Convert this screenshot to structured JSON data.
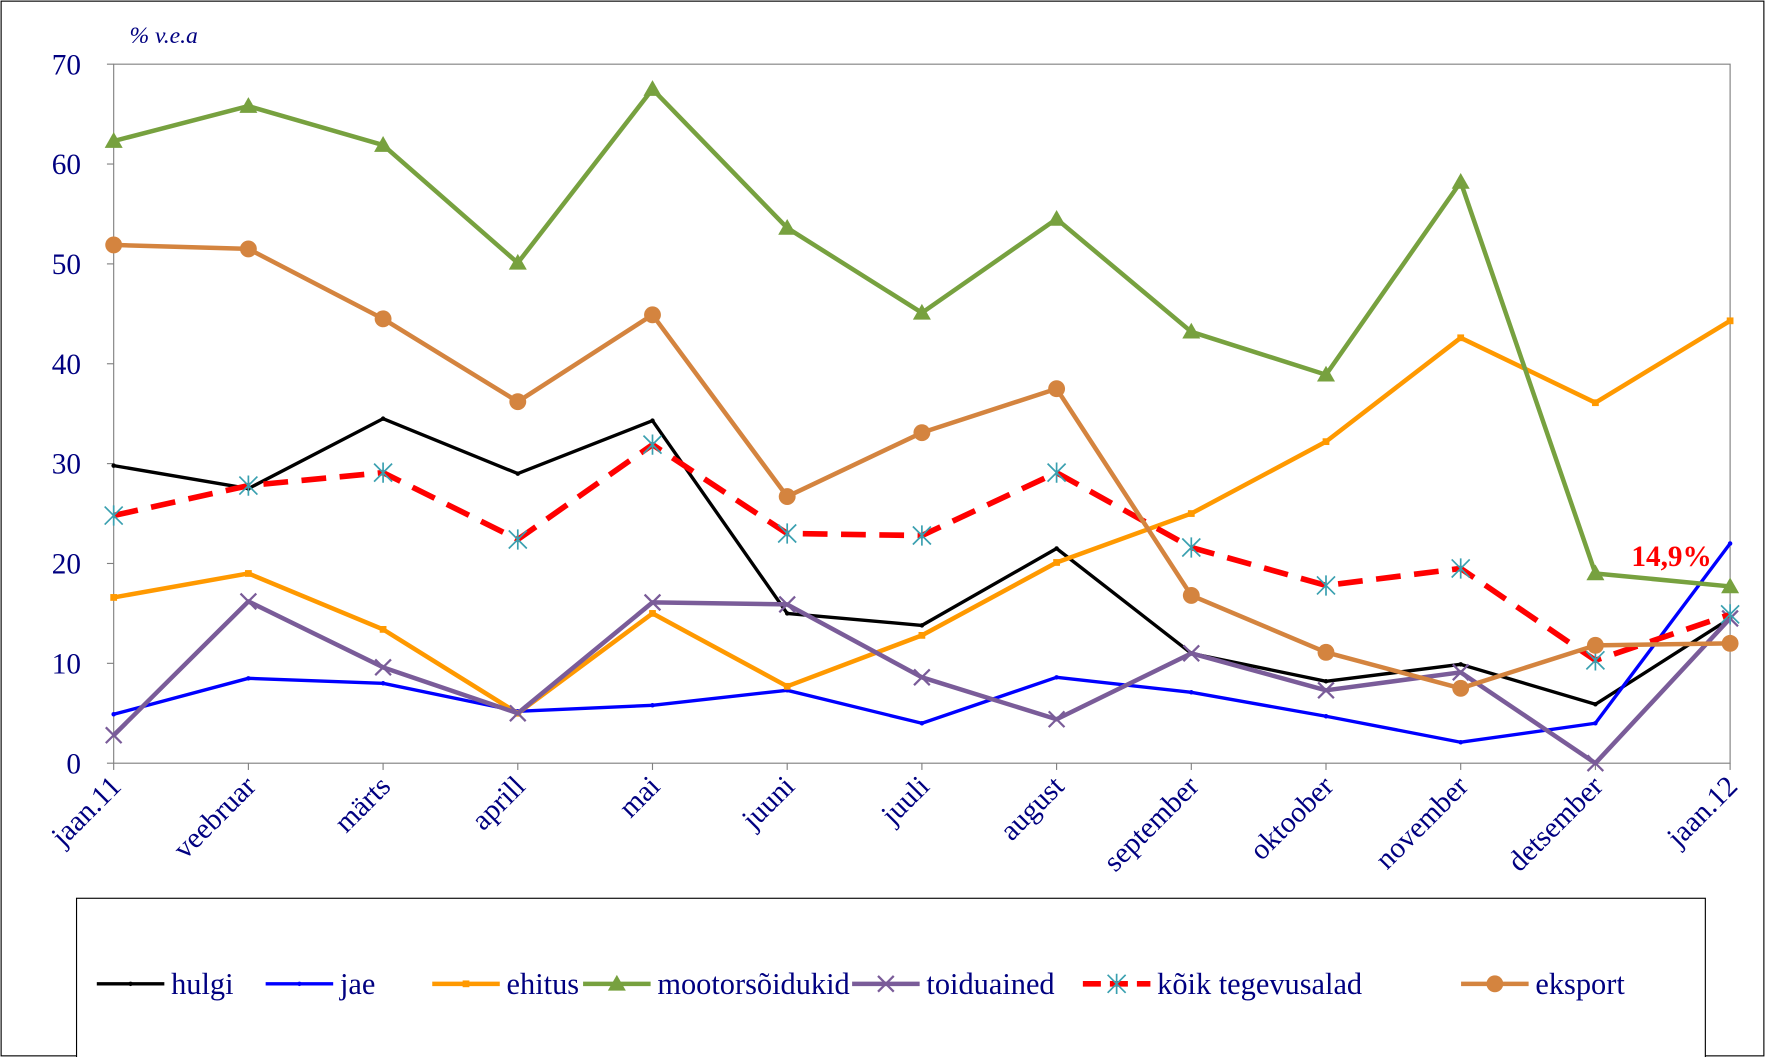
{
  "chart_data": {
    "type": "line",
    "unit_label": "% v.e.a",
    "annotation": "14,9%",
    "categories": [
      "jaan.11",
      "veebruar",
      "märts",
      "aprill",
      "mai",
      "juuni",
      "juuli",
      "august",
      "september",
      "oktoober",
      "november",
      "detsember",
      "jaan.12"
    ],
    "ylim": [
      0,
      70
    ],
    "yticks": [
      0,
      10,
      20,
      30,
      40,
      50,
      60,
      70
    ],
    "legend": "bottom",
    "series": [
      {
        "name": "hulgi",
        "color": "#000000",
        "marker": "dot",
        "values": [
          29.8,
          27.5,
          34.5,
          29,
          34.3,
          15,
          13.8,
          21.5,
          11,
          8.2,
          9.9,
          5.9,
          14.5
        ]
      },
      {
        "name": "jae",
        "color": "#0000ff",
        "marker": "dot",
        "values": [
          4.9,
          8.5,
          8,
          5.2,
          5.8,
          7.3,
          4,
          8.6,
          7.1,
          4.7,
          2.1,
          4,
          22
        ]
      },
      {
        "name": "ehitus",
        "color": "#ff9900",
        "marker": "square",
        "values": [
          16.6,
          19,
          13.4,
          5,
          15,
          7.7,
          12.8,
          20.1,
          25,
          32.2,
          42.6,
          36.1,
          44.3
        ]
      },
      {
        "name": "mootorsõidukid",
        "color": "#77a13f",
        "marker": "triangle",
        "values": [
          62.3,
          65.8,
          61.9,
          50.1,
          67.5,
          53.6,
          45.1,
          54.5,
          43.2,
          38.9,
          58.2,
          19,
          17.7
        ]
      },
      {
        "name": "toiduained",
        "color": "#7a5c99",
        "marker": "x",
        "values": [
          2.8,
          16.2,
          9.6,
          5,
          16.1,
          15.9,
          8.6,
          4.4,
          11,
          7.3,
          9.1,
          0,
          14.5
        ]
      },
      {
        "name": "kõik tegevusalad",
        "color": "#ff0000",
        "marker": "asterisk",
        "dashed": true,
        "values": [
          24.8,
          27.8,
          29.1,
          22.4,
          31.9,
          23,
          22.8,
          29.1,
          21.6,
          17.8,
          19.5,
          10.3,
          14.9
        ]
      },
      {
        "name": "eksport",
        "color": "#d4843f",
        "marker": "circle",
        "values": [
          51.9,
          51.5,
          44.5,
          36.2,
          44.9,
          26.7,
          33.1,
          37.5,
          16.8,
          11.1,
          7.5,
          11.8,
          12
        ]
      }
    ]
  }
}
